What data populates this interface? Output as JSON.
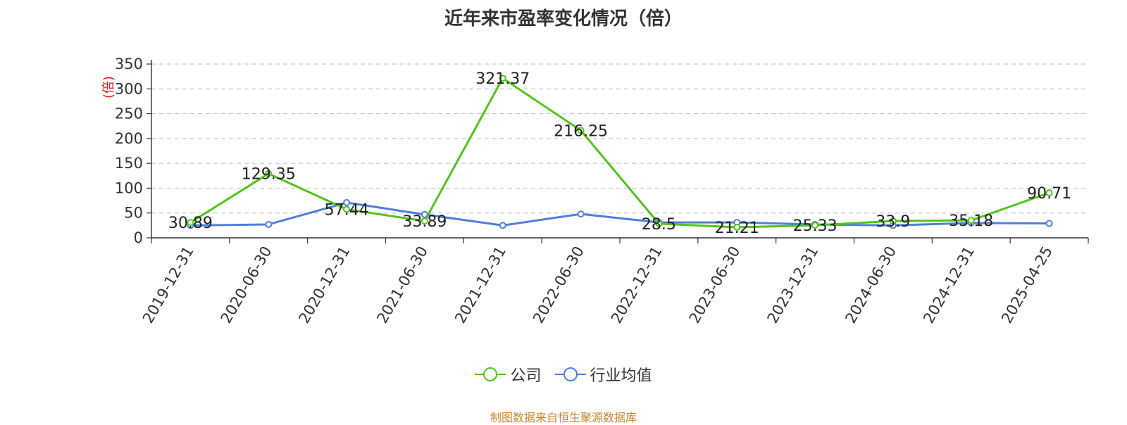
{
  "source_note": "制图数据来自恒生聚源数据库",
  "chart_data": {
    "type": "line",
    "title": "近年来市盈率变化情况（倍）",
    "xlabel": "",
    "ylabel": "(倍)",
    "ylim": [
      0,
      350
    ],
    "yticks": [
      0,
      50,
      100,
      150,
      200,
      250,
      300,
      350
    ],
    "grid": true,
    "legend_position": "bottom",
    "categories": [
      "2019-12-31",
      "2020-06-30",
      "2020-12-31",
      "2021-06-30",
      "2021-12-31",
      "2022-06-30",
      "2022-12-31",
      "2023-06-30",
      "2023-12-31",
      "2024-06-30",
      "2024-12-31",
      "2025-04-25"
    ],
    "series": [
      {
        "name": "公司",
        "color": "#52c41a",
        "values": [
          30.89,
          129.35,
          57.44,
          33.89,
          321.37,
          216.25,
          28.5,
          21.21,
          25.33,
          33.9,
          35.18,
          90.71
        ],
        "labels": [
          "30.89",
          "129.35",
          "57.44",
          "33.89",
          "321.37",
          "216.25",
          "28.5",
          "21.21",
          "25.33",
          "33.9",
          "35.18",
          "90.71"
        ]
      },
      {
        "name": "行业均值",
        "color": "#4f7fdb",
        "values": [
          25,
          27,
          71,
          47,
          25,
          48,
          31,
          31,
          27,
          25,
          30,
          29
        ]
      }
    ]
  }
}
